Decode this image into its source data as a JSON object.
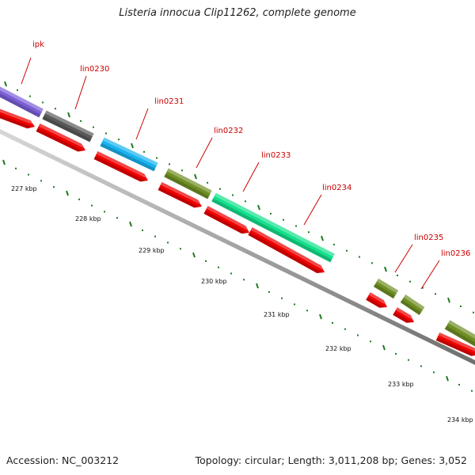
{
  "title": "Listeria innocua Clip11262, complete genome",
  "footer": {
    "accession": "Accession: NC_003212",
    "topology": "Topology: circular; Length: 3,011,208 bp; Genes: 3,052"
  },
  "colors": {
    "backbone": "#8a8a8a",
    "gene_label": "#cc0000",
    "tick": "#1f7a1f",
    "cds": "#ee0000"
  },
  "scale": {
    "unit": "kbp",
    "ticks": [
      {
        "label": "227 kbp",
        "value": 227
      },
      {
        "label": "228 kbp",
        "value": 228
      },
      {
        "label": "229 kbp",
        "value": 229
      },
      {
        "label": "230 kbp",
        "value": 230
      },
      {
        "label": "231 kbp",
        "value": 231
      },
      {
        "label": "232 kbp",
        "value": 232
      },
      {
        "label": "233 kbp",
        "value": 233
      },
      {
        "label": "234 kbp",
        "value": 234
      }
    ]
  },
  "genes": [
    {
      "name": "ipk",
      "color": "#7a5fd6"
    },
    {
      "name": "lin0230",
      "color": "#5a5a5a"
    },
    {
      "name": "lin0231",
      "color": "#19b4f0"
    },
    {
      "name": "lin0232",
      "color": "#6f8f23"
    },
    {
      "name": "lin0233",
      "color": "#14e08c"
    },
    {
      "name": "lin0234",
      "color": null
    },
    {
      "name": "lin0235",
      "color": "#6f8f23"
    },
    {
      "name": "lin0236",
      "color": "#6f8f23"
    }
  ]
}
